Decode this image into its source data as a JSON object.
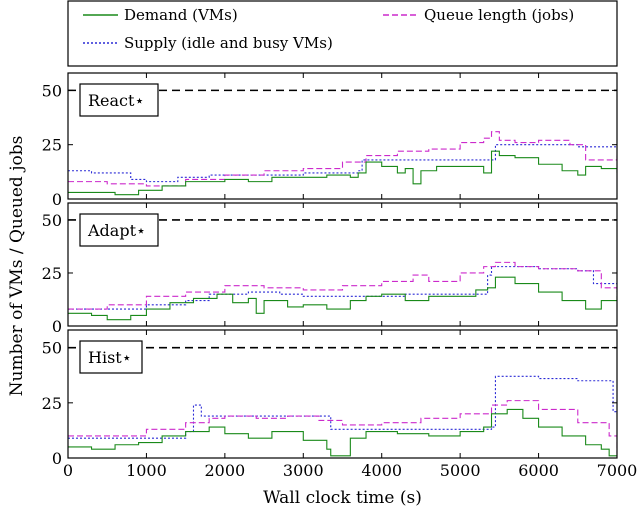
{
  "colors": {
    "demand": "#1a8a1a",
    "supply": "#2b2bd6",
    "queue": "#cc2acc",
    "threshold": "#000000"
  },
  "chart_data": {
    "type": "line",
    "xlabel": "Wall clock time (s)",
    "ylabel": "Number of VMs / Queued jobs",
    "xlim": [
      0,
      7000
    ],
    "ylim": [
      0,
      58
    ],
    "xticks": [
      "0",
      "1000",
      "2000",
      "3000",
      "4000",
      "5000",
      "6000",
      "7000"
    ],
    "yticks": [
      "0",
      "25",
      "50"
    ],
    "legend": {
      "placement": "top",
      "entries": [
        {
          "label": "Demand (VMs)",
          "series": "demand"
        },
        {
          "label": "Queue length (jobs)",
          "series": "queue"
        },
        {
          "label": "Supply (idle and busy VMs)",
          "series": "supply"
        }
      ]
    },
    "threshold": 50,
    "panels": [
      {
        "label": "React⋆",
        "demand": {
          "x": [
            0,
            300,
            600,
            900,
            1000,
            1200,
            1500,
            1800,
            2000,
            2300,
            2600,
            3000,
            3300,
            3600,
            3700,
            3800,
            4000,
            4200,
            4300,
            4400,
            4500,
            4700,
            5000,
            5300,
            5400,
            5500,
            5700,
            6000,
            6300,
            6500,
            6600,
            6800,
            7000
          ],
          "y": [
            3,
            3,
            2,
            4,
            4,
            6,
            8,
            8,
            9,
            8,
            10,
            10,
            11,
            10,
            12,
            17,
            15,
            12,
            14,
            7,
            13,
            15,
            15,
            12,
            22,
            20,
            19,
            16,
            13,
            11,
            15,
            14,
            12
          ]
        },
        "supply": {
          "x": [
            0,
            300,
            800,
            1000,
            1400,
            1800,
            2500,
            3000,
            3700,
            3750,
            4000,
            4400,
            4800,
            5000,
            5400,
            5450,
            6000,
            6500,
            7000
          ],
          "y": [
            13,
            12,
            9,
            8,
            10,
            11,
            11,
            12,
            13,
            18,
            18,
            18,
            18,
            18,
            18,
            25,
            25,
            24,
            24
          ]
        },
        "queue": {
          "x": [
            0,
            500,
            1000,
            1500,
            2000,
            2500,
            3000,
            3500,
            3800,
            4200,
            4600,
            5000,
            5300,
            5400,
            5500,
            5700,
            6000,
            6400,
            6600,
            7000
          ],
          "y": [
            8,
            7,
            6,
            9,
            11,
            13,
            14,
            17,
            20,
            22,
            23,
            26,
            28,
            31,
            27,
            26,
            27,
            25,
            18,
            20
          ]
        }
      },
      {
        "label": "Adapt⋆",
        "demand": {
          "x": [
            0,
            300,
            500,
            800,
            1000,
            1300,
            1600,
            1900,
            2100,
            2300,
            2400,
            2500,
            2800,
            3000,
            3300,
            3600,
            3800,
            4000,
            4300,
            4600,
            4900,
            5200,
            5350,
            5450,
            5700,
            6000,
            6300,
            6600,
            6800,
            7000
          ],
          "y": [
            6,
            5,
            3,
            5,
            8,
            11,
            13,
            15,
            11,
            13,
            6,
            12,
            9,
            10,
            8,
            12,
            14,
            15,
            12,
            14,
            14,
            17,
            18,
            23,
            20,
            16,
            12,
            8,
            12,
            14
          ]
        },
        "supply": {
          "x": [
            0,
            500,
            1000,
            1500,
            1800,
            2300,
            2700,
            3000,
            3300,
            3800,
            4300,
            4800,
            5300,
            5350,
            5400,
            6000,
            6500,
            6700,
            7000
          ],
          "y": [
            8,
            8,
            10,
            12,
            15,
            16,
            15,
            14,
            14,
            14,
            15,
            15,
            15,
            24,
            28,
            27,
            26,
            20,
            16
          ]
        },
        "queue": {
          "x": [
            0,
            500,
            1000,
            1500,
            2000,
            2500,
            3000,
            3500,
            4000,
            4400,
            4600,
            5000,
            5300,
            5450,
            5700,
            6000,
            6500,
            6800,
            7000
          ],
          "y": [
            8,
            10,
            14,
            16,
            19,
            18,
            17,
            19,
            21,
            24,
            21,
            25,
            28,
            30,
            28,
            27,
            26,
            18,
            17
          ]
        }
      },
      {
        "label": "Hist⋆",
        "demand": {
          "x": [
            0,
            300,
            600,
            900,
            1200,
            1500,
            1800,
            2000,
            2300,
            2600,
            3000,
            3300,
            3350,
            3600,
            3800,
            4200,
            4600,
            5000,
            5300,
            5400,
            5600,
            5800,
            6000,
            6300,
            6600,
            6800,
            6900,
            7000
          ],
          "y": [
            5,
            4,
            6,
            7,
            10,
            12,
            14,
            11,
            9,
            12,
            8,
            4,
            1,
            9,
            12,
            11,
            10,
            12,
            14,
            20,
            22,
            18,
            14,
            10,
            6,
            4,
            1,
            1
          ]
        },
        "supply": {
          "x": [
            0,
            500,
            1000,
            1500,
            1600,
            1700,
            2000,
            2500,
            3000,
            3350,
            3500,
            4000,
            4500,
            5000,
            5400,
            5450,
            6000,
            6500,
            6900,
            6950,
            7000
          ],
          "y": [
            9,
            9,
            9,
            12,
            24,
            19,
            19,
            19,
            19,
            13,
            13,
            13,
            13,
            13,
            14,
            37,
            36,
            35,
            35,
            21,
            20
          ]
        },
        "queue": {
          "x": [
            0,
            500,
            1000,
            1500,
            1800,
            2000,
            2400,
            2800,
            3200,
            3500,
            4000,
            4500,
            5000,
            5400,
            5600,
            6000,
            6500,
            6900,
            7000
          ],
          "y": [
            10,
            10,
            13,
            16,
            18,
            19,
            18,
            19,
            17,
            15,
            16,
            18,
            20,
            24,
            26,
            22,
            16,
            10,
            2
          ]
        }
      }
    ]
  }
}
